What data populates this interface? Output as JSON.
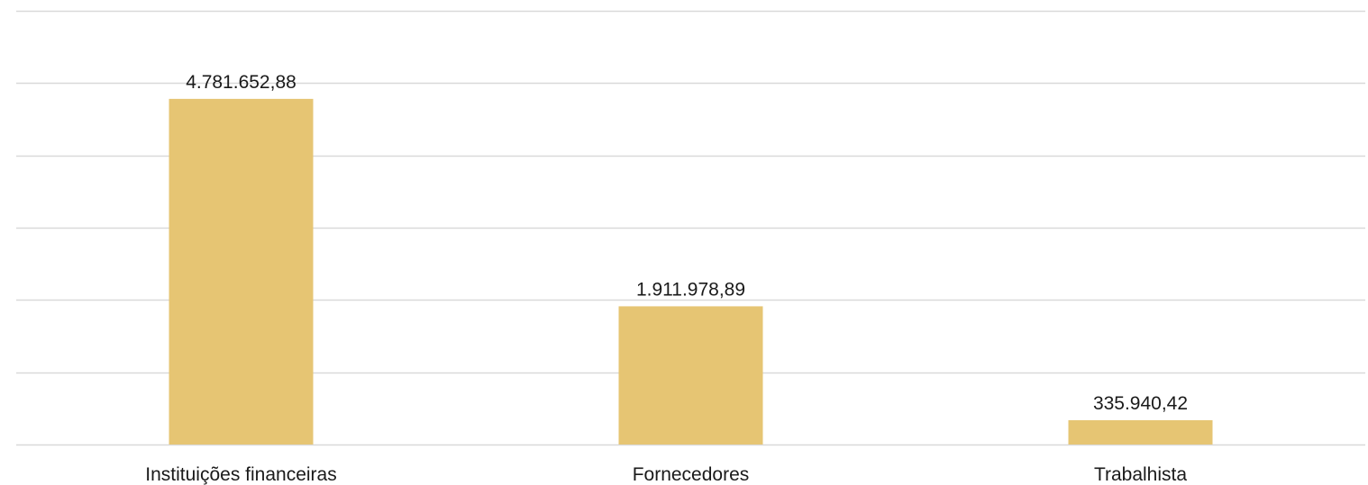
{
  "chart_data": {
    "type": "bar",
    "categories": [
      "Instituições financeiras",
      "Fornecedores",
      "Trabalhista"
    ],
    "values": [
      4781652.88,
      1911978.89,
      335940.42
    ],
    "value_labels": [
      "4.781.652,88",
      "1.911.978,89",
      "335.940,42"
    ],
    "ylim": [
      0,
      6000000
    ],
    "y_gridline_step": 1000000,
    "grid": true,
    "legend": "none",
    "show_y_axis_labels": false,
    "colors": {
      "bar": "#e6c573",
      "gridline": "#d9d9d9",
      "text": "#1a1a1a"
    }
  }
}
